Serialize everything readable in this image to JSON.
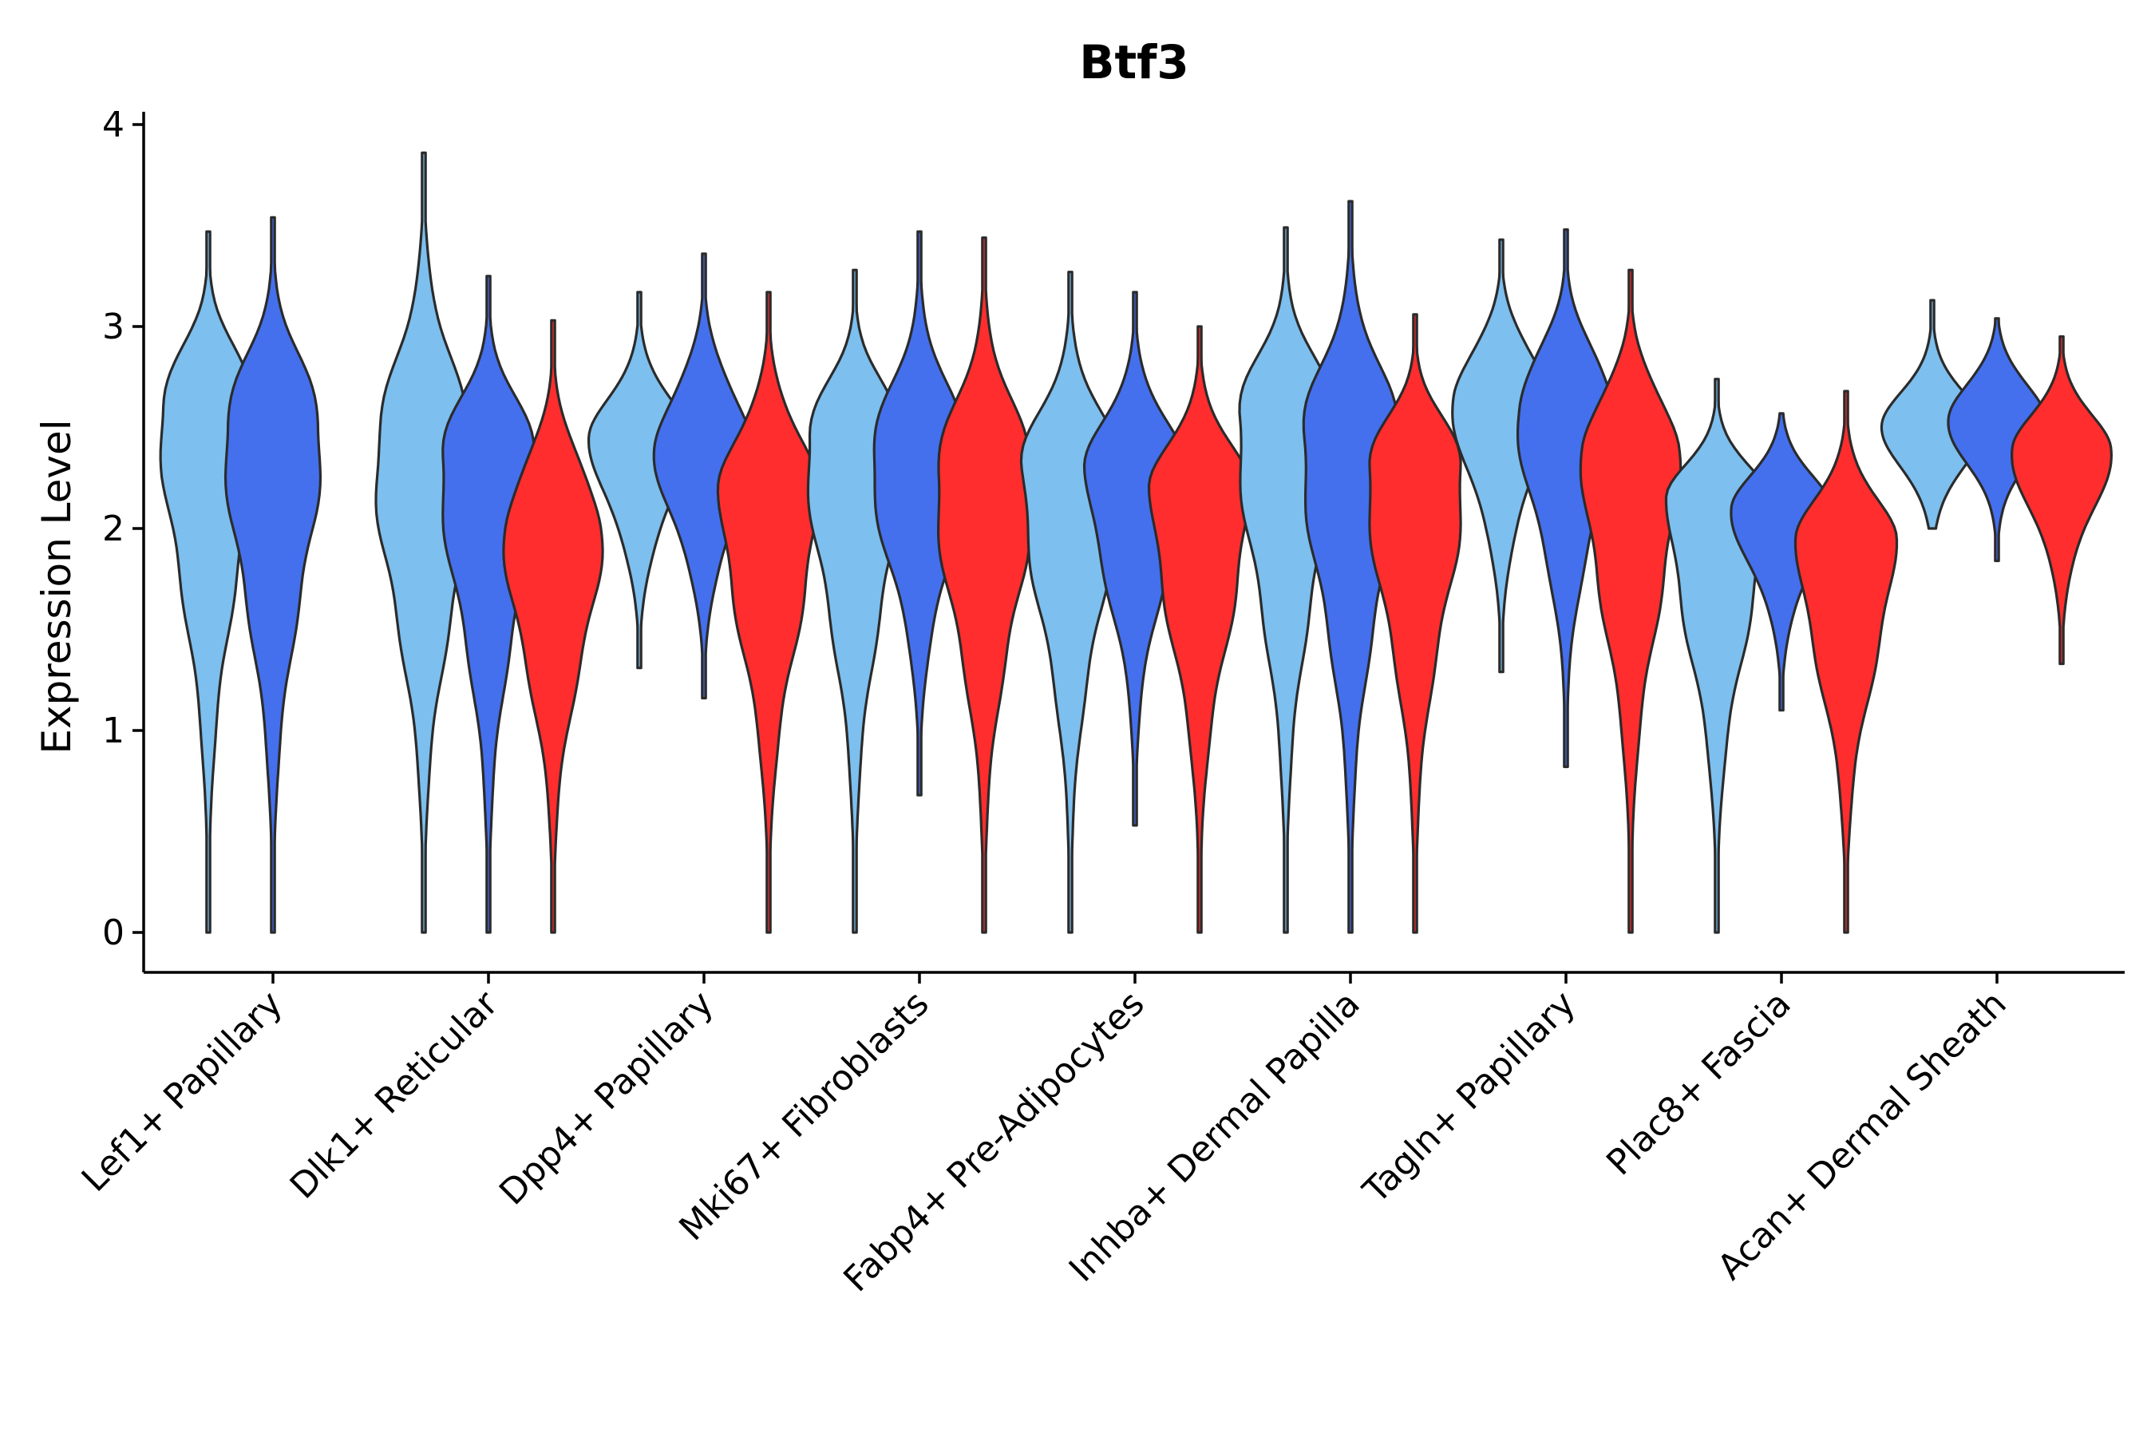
{
  "chart_data": {
    "type": "violin",
    "title": "Btf3",
    "xlabel": "",
    "ylabel": "Expression Level",
    "ylim": [
      -0.2,
      4.05
    ],
    "yticks": [
      0,
      1,
      2,
      3,
      4
    ],
    "grid": false,
    "legend": "none",
    "group_colors": [
      "#7dbfee",
      "#4470ee",
      "#ff2d2d"
    ],
    "categories": [
      "Lef1+ Papillary",
      "Dlk1+ Reticular",
      "Dpp4+ Papillary",
      "Mki67+ Fibroblasts",
      "Fabp4+ Pre-Adipocytes",
      "Inhba+ Dermal Papilla",
      "Tagln+ Papillary",
      "Plac8+ Fascia",
      "Acan+ Dermal Sheath"
    ],
    "violins": [
      {
        "category": "Lef1+ Papillary",
        "group": 0,
        "min": 0,
        "max": 3.47,
        "mode": 2.6
      },
      {
        "category": "Lef1+ Papillary",
        "group": 1,
        "min": 0,
        "max": 3.54,
        "mode": 2.5
      },
      {
        "category": "Dlk1+ Reticular",
        "group": 0,
        "min": 0,
        "max": 3.86,
        "mode": 2.35
      },
      {
        "category": "Dlk1+ Reticular",
        "group": 1,
        "min": 0,
        "max": 3.25,
        "mode": 2.35
      },
      {
        "category": "Dlk1+ Reticular",
        "group": 2,
        "min": 0,
        "max": 3.03,
        "mode": 2.0
      },
      {
        "category": "Dpp4+ Papillary",
        "group": 0,
        "min": 1.31,
        "max": 3.17,
        "mode": 2.45
      },
      {
        "category": "Dpp4+ Papillary",
        "group": 1,
        "min": 1.16,
        "max": 3.36,
        "mode": 2.4
      },
      {
        "category": "Dpp4+ Papillary",
        "group": 2,
        "min": 0,
        "max": 3.17,
        "mode": 2.2
      },
      {
        "category": "Mki67+ Fibroblasts",
        "group": 0,
        "min": 0,
        "max": 3.28,
        "mode": 2.45
      },
      {
        "category": "Mki67+ Fibroblasts",
        "group": 1,
        "min": 0.68,
        "max": 3.47,
        "mode": 2.35
      },
      {
        "category": "Mki67+ Fibroblasts",
        "group": 2,
        "min": 0,
        "max": 3.44,
        "mode": 2.25
      },
      {
        "category": "Fabp4+ Pre-Adipocytes",
        "group": 0,
        "min": 0,
        "max": 3.27,
        "mode": 2.3
      },
      {
        "category": "Fabp4+ Pre-Adipocytes",
        "group": 1,
        "min": 0.53,
        "max": 3.17,
        "mode": 2.3
      },
      {
        "category": "Fabp4+ Pre-Adipocytes",
        "group": 2,
        "min": 0,
        "max": 3.0,
        "mode": 2.2
      },
      {
        "category": "Inhba+ Dermal Papilla",
        "group": 0,
        "min": 0,
        "max": 3.49,
        "mode": 2.55
      },
      {
        "category": "Inhba+ Dermal Papilla",
        "group": 1,
        "min": 0,
        "max": 3.62,
        "mode": 2.45
      },
      {
        "category": "Inhba+ Dermal Papilla",
        "group": 2,
        "min": 0,
        "max": 3.06,
        "mode": 2.3
      },
      {
        "category": "Tagln+ Papillary",
        "group": 0,
        "min": 1.29,
        "max": 3.43,
        "mode": 2.65
      },
      {
        "category": "Tagln+ Papillary",
        "group": 1,
        "min": 0.82,
        "max": 3.48,
        "mode": 2.6
      },
      {
        "category": "Tagln+ Papillary",
        "group": 2,
        "min": 0,
        "max": 3.28,
        "mode": 2.4
      },
      {
        "category": "Plac8+ Fascia",
        "group": 0,
        "min": 0,
        "max": 2.74,
        "mode": 2.15
      },
      {
        "category": "Plac8+ Fascia",
        "group": 1,
        "min": 1.1,
        "max": 2.57,
        "mode": 2.1
      },
      {
        "category": "Plac8+ Fascia",
        "group": 2,
        "min": 0,
        "max": 2.68,
        "mode": 1.95
      },
      {
        "category": "Acan+ Dermal Sheath",
        "group": 0,
        "min": 2.0,
        "max": 3.13,
        "mode": 2.5
      },
      {
        "category": "Acan+ Dermal Sheath",
        "group": 1,
        "min": 1.84,
        "max": 3.04,
        "mode": 2.55
      },
      {
        "category": "Acan+ Dermal Sheath",
        "group": 2,
        "min": 1.33,
        "max": 2.95,
        "mode": 2.4
      }
    ]
  }
}
